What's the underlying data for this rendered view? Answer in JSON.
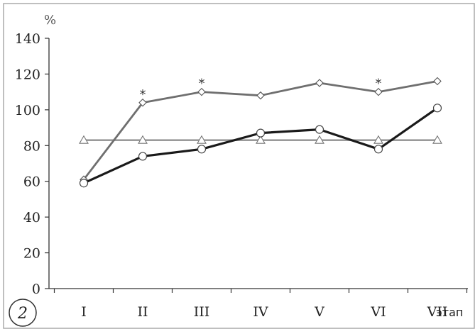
{
  "figure": {
    "panel_label": "2",
    "unit_label": "%",
    "x_suffix": "этап"
  },
  "colors": {
    "frame": "#aaaaaa",
    "axis": "#333333",
    "series_circle": "#1a1a1a",
    "series_diamond": "#6f6f6f",
    "series_triangle": "#9a9a9a"
  },
  "chart_data": {
    "type": "line",
    "categories": [
      "I",
      "II",
      "III",
      "IV",
      "V",
      "VI",
      "VII"
    ],
    "ylim": [
      0,
      140
    ],
    "yticks": [
      "0",
      "20",
      "40",
      "60",
      "80",
      "100",
      "120",
      "140"
    ],
    "xlabel": "этап",
    "ylabel": "%",
    "grid": false,
    "series": [
      {
        "marker": "circle",
        "color": "#1a1a1a",
        "values": [
          59,
          74,
          78,
          87,
          89,
          78,
          101
        ]
      },
      {
        "marker": "diamond",
        "color": "#6f6f6f",
        "values": [
          61,
          104,
          110,
          108,
          115,
          110,
          116
        ]
      },
      {
        "marker": "triangle",
        "color": "#9a9a9a",
        "values": [
          83,
          83,
          83,
          83,
          83,
          83,
          83
        ]
      }
    ],
    "annotations": [
      {
        "text": "*",
        "category": "II",
        "y": 104
      },
      {
        "text": "*",
        "category": "III",
        "y": 110
      },
      {
        "text": "*",
        "category": "VI",
        "y": 110
      }
    ]
  }
}
